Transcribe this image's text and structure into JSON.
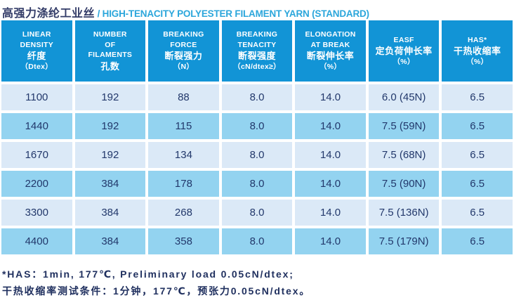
{
  "title": {
    "zh": "高强力涤纶工业丝",
    "separator": " / ",
    "en": "HIGH-TENACITY POLYESTER FILAMENT YARN (STANDARD)"
  },
  "table": {
    "columns": [
      {
        "key": "linear-density",
        "lines": [
          "LINEAR",
          "DENSITY",
          "纤度",
          "（Dtex）"
        ]
      },
      {
        "key": "number-of-filaments",
        "lines": [
          "NUMBER",
          "OF",
          "FILAMENTS",
          "孔数"
        ]
      },
      {
        "key": "breaking-force",
        "lines": [
          "BREAKING",
          "FORCE",
          "断裂强力",
          "（N）"
        ]
      },
      {
        "key": "breaking-tenacity",
        "lines": [
          "BREAKING",
          "TENACITY",
          "断裂强度",
          "（cN/dtex≥）"
        ]
      },
      {
        "key": "elongation-at-break",
        "lines": [
          "ELONGATION",
          "AT BREAK",
          "断裂伸长率",
          "（%）"
        ]
      },
      {
        "key": "easf",
        "lines": [
          "EASF",
          "定负荷伸长率",
          "（%）"
        ]
      },
      {
        "key": "has",
        "lines": [
          "HAS*",
          "干热收缩率",
          "（%）"
        ]
      }
    ],
    "rows": [
      [
        "1100",
        "192",
        "88",
        "8.0",
        "14.0",
        "6.0 (45N)",
        "6.5"
      ],
      [
        "1440",
        "192",
        "115",
        "8.0",
        "14.0",
        "7.5 (59N)",
        "6.5"
      ],
      [
        "1670",
        "192",
        "134",
        "8.0",
        "14.0",
        "7.5 (68N)",
        "6.5"
      ],
      [
        "2200",
        "384",
        "178",
        "8.0",
        "14.0",
        "7.5 (90N)",
        "6.5"
      ],
      [
        "3300",
        "384",
        "268",
        "8.0",
        "14.0",
        "7.5 (136N)",
        "6.5"
      ],
      [
        "4400",
        "384",
        "358",
        "8.0",
        "14.0",
        "7.5 (179N)",
        "6.5"
      ]
    ]
  },
  "notes": [
    "*HAS：1min, 177℃, Preliminary load 0.05cN/dtex;",
    "干热收缩率测试条件：1分钟，177℃，预张力0.05cN/dtex。"
  ],
  "colors": {
    "header_bg": "#1294d6",
    "row_light": "#dbe9f7",
    "row_medium": "#93d3f0",
    "cell_text": "#22386b",
    "title_zh": "#333c68",
    "title_en": "#2ba6db",
    "note_text": "#20305f"
  }
}
